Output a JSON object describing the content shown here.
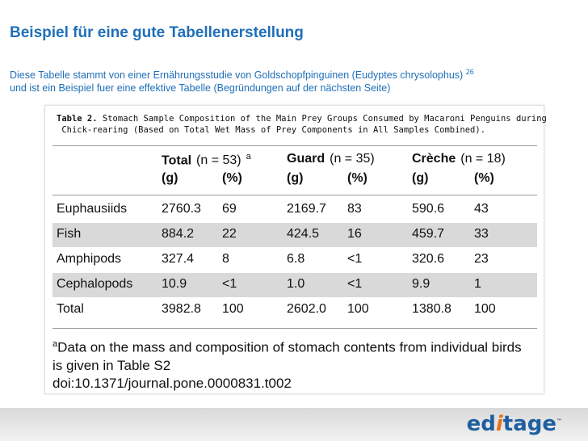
{
  "header": {
    "title": "Beispiel für eine gute Tabellenerstellung",
    "description": [
      "Diese Tabelle stammt von einer Ernährungsstudie von Goldschopfpinguinen (Eudyptes chrysolophus)",
      "und ist ein Beispiel fuer eine effektive Tabelle (Begründungen auf der nächsten Seite)"
    ],
    "reference": "26"
  },
  "table": {
    "caption_label": "Table 2.",
    "caption": [
      "Stomach Sample Composition of the Main Prey Groups Consumed by Macaroni Penguins during",
      "Chick-rearing (Based on Total Wet Mass of Prey Components in All Samples Combined)."
    ],
    "groups": [
      {
        "name": "Total",
        "n": "(n = 53)"
      },
      {
        "name": "Guard",
        "n": "(n = 35)"
      },
      {
        "name": "Crèche",
        "n": "(n = 18)"
      }
    ],
    "group_note": "a",
    "units": [
      "(g)",
      "(%)",
      "(g)",
      "(%)",
      "(g)",
      "(%)"
    ],
    "rows": [
      [
        "Euphausiids",
        "2760.3",
        "69",
        "2169.7",
        "83",
        "590.6",
        "43"
      ],
      [
        "Fish",
        "884.2",
        "22",
        "424.5",
        "16",
        "459.7",
        "33"
      ],
      [
        "Amphipods",
        "327.4",
        "8",
        "6.8",
        "<1",
        "320.6",
        "23"
      ],
      [
        "Cephalopods",
        "10.9",
        "<1",
        "1.0",
        "<1",
        "9.9",
        "1"
      ],
      [
        "Total",
        "3982.8",
        "100",
        "2602.0",
        "100",
        "1380.8",
        "100"
      ]
    ],
    "footnote": {
      "marker": "a",
      "lines": [
        "Data on the mass and composition of stomach contents from individual birds",
        " is given in Table S2"
      ],
      "doi": "doi:10.1371/journal.pone.0000831.t002"
    }
  },
  "logo": {
    "parts": [
      "ed",
      "i",
      "tage"
    ],
    "tm": "™"
  }
}
